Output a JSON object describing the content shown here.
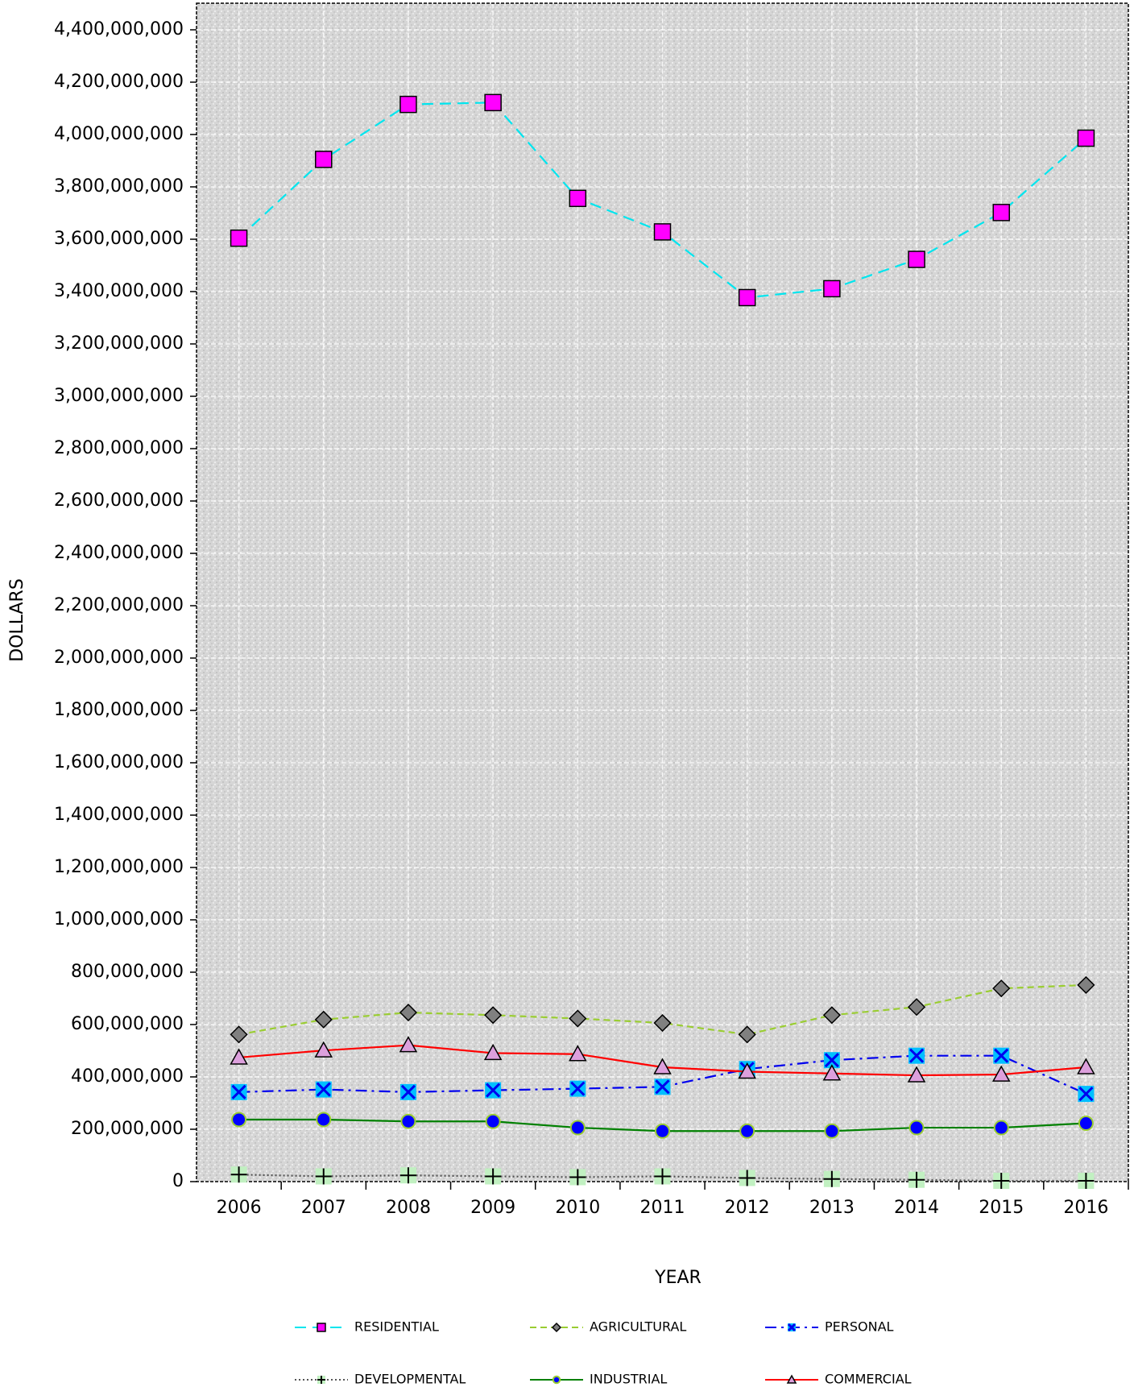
{
  "chart_data": {
    "type": "line",
    "x_label": "YEAR",
    "y_label": "DOLLARS",
    "categories": [
      "2006",
      "2007",
      "2008",
      "2009",
      "2010",
      "2011",
      "2012",
      "2013",
      "2014",
      "2015",
      "2016"
    ],
    "ylim": [
      0,
      4500000000
    ],
    "yticks": [
      0,
      {
        "value": 200000000,
        "label": "200,000,000"
      },
      {
        "value": 400000000,
        "label": "400,000,000"
      },
      {
        "value": 600000000,
        "label": "600,000,000"
      },
      {
        "value": 800000000,
        "label": "800,000,000"
      },
      {
        "value": 1000000000,
        "label": "1,000,000,000"
      },
      {
        "value": 1200000000,
        "label": "1,200,000,000"
      },
      {
        "value": 1400000000,
        "label": "1,400,000,000"
      },
      {
        "value": 1600000000,
        "label": "1,600,000,000"
      },
      {
        "value": 1800000000,
        "label": "1,800,000,000"
      },
      {
        "value": 2000000000,
        "label": "2,000,000,000"
      },
      {
        "value": 2200000000,
        "label": "2,200,000,000"
      },
      {
        "value": 2400000000,
        "label": "2,400,000,000"
      },
      {
        "value": 2600000000,
        "label": "2,600,000,000"
      },
      {
        "value": 2800000000,
        "label": "2,800,000,000"
      },
      {
        "value": 3000000000,
        "label": "3,000,000,000"
      },
      {
        "value": 3200000000,
        "label": "3,200,000,000"
      },
      {
        "value": 3400000000,
        "label": "3,400,000,000"
      },
      {
        "value": 3600000000,
        "label": "3,600,000,000"
      },
      {
        "value": 3800000000,
        "label": "3,800,000,000"
      },
      {
        "value": 4000000000,
        "label": "4,000,000,000"
      },
      {
        "value": 4200000000,
        "label": "4,200,000,000"
      },
      {
        "value": 4400000000,
        "label": "4,400,000,000"
      }
    ],
    "grid": true,
    "series": [
      {
        "name": "RESIDENTIAL",
        "color": "#00e5ee",
        "dash": "14,8",
        "marker": "square",
        "marker_color": "#ff00ff",
        "values": [
          3604000000,
          3905000000,
          4115000000,
          4122000000,
          3756000000,
          3628000000,
          3377000000,
          3411000000,
          3523000000,
          3702000000,
          3986000000
        ]
      },
      {
        "name": "AGRICULTURAL",
        "color": "#9acd32",
        "dash": "8,5",
        "marker": "diamond",
        "marker_color": "#808080",
        "values": [
          562000000,
          619000000,
          646000000,
          636000000,
          623000000,
          606000000,
          562000000,
          636000000,
          667000000,
          738000000,
          751000000
        ]
      },
      {
        "name": "PERSONAL",
        "color": "#0000ee",
        "dash": "14,6,3,6",
        "marker": "xbox",
        "marker_color": "#00bfff",
        "values": [
          342000000,
          352000000,
          342000000,
          349000000,
          355000000,
          362000000,
          430000000,
          464000000,
          481000000,
          481000000,
          335000000
        ]
      },
      {
        "name": "DEVELOPMENTAL",
        "color": "#555555",
        "dash": "2,3",
        "marker": "plus",
        "marker_color": "#c1f0c1",
        "values": [
          27000000,
          20000000,
          24000000,
          20000000,
          17000000,
          20000000,
          14000000,
          10000000,
          7000000,
          3000000,
          3000000
        ]
      },
      {
        "name": "INDUSTRIAL",
        "color": "#008000",
        "dash": "",
        "marker": "circle",
        "marker_color": "#0000ff",
        "values": [
          237000000,
          237000000,
          230000000,
          230000000,
          206000000,
          193000000,
          193000000,
          193000000,
          206000000,
          206000000,
          223000000
        ]
      },
      {
        "name": "COMMERCIAL",
        "color": "#ff0000",
        "dash": "",
        "marker": "triangle",
        "marker_color": "#dda0dd",
        "values": [
          474000000,
          501000000,
          521000000,
          491000000,
          487000000,
          437000000,
          420000000,
          413000000,
          406000000,
          409000000,
          437000000
        ]
      }
    ]
  }
}
